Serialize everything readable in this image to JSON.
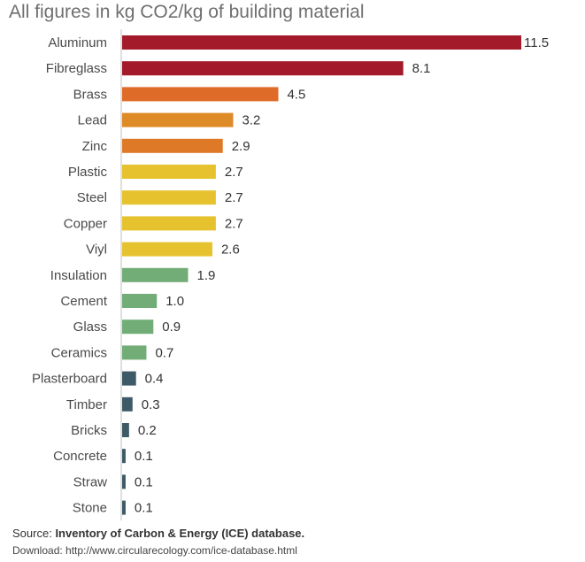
{
  "chart_data": {
    "type": "bar",
    "orientation": "horizontal",
    "title": "All figures in kg CO2/kg of building material",
    "xlabel": "",
    "ylabel": "",
    "xlim": [
      0,
      11.5
    ],
    "grid": false,
    "legend": "none",
    "categories": [
      "Aluminum",
      "Fibreglass",
      "Brass",
      "Lead",
      "Zinc",
      "Plastic",
      "Steel",
      "Copper",
      "Viyl",
      "Insulation",
      "Cement",
      "Glass",
      "Ceramics",
      "Plasterboard",
      "Timber",
      "Bricks",
      "Concrete",
      "Straw",
      "Stone"
    ],
    "values": [
      11.5,
      8.1,
      4.5,
      3.2,
      2.9,
      2.7,
      2.7,
      2.7,
      2.6,
      1.9,
      1.0,
      0.9,
      0.7,
      0.4,
      0.3,
      0.2,
      0.1,
      0.1,
      0.1
    ],
    "value_labels": [
      "11.5",
      "8.1",
      "4.5",
      "3.2",
      "2.9",
      "2.7",
      "2.7",
      "2.7",
      "2.6",
      "1.9",
      "1.0",
      "0.9",
      "0.7",
      "0.4",
      "0.3",
      "0.2",
      "0.1",
      "0.1",
      "0.1"
    ],
    "colors": [
      "#a31b2a",
      "#a31b2a",
      "#de6b27",
      "#de8a27",
      "#de7a27",
      "#e6c32e",
      "#e6c32e",
      "#e6c32e",
      "#e6c32e",
      "#72ad77",
      "#72ad77",
      "#72ad77",
      "#72ad77",
      "#3e5a66",
      "#3e5a66",
      "#3e5a66",
      "#3e5a66",
      "#3e5a66",
      "#3e5a66"
    ],
    "axis_color": "#bfbfbf"
  },
  "footer": {
    "source_prefix": "Source:",
    "source_text": "Inventory of Carbon & Energy (ICE) database.",
    "download_text": "Download: http://www.circularecology.com/ice-database.html"
  }
}
